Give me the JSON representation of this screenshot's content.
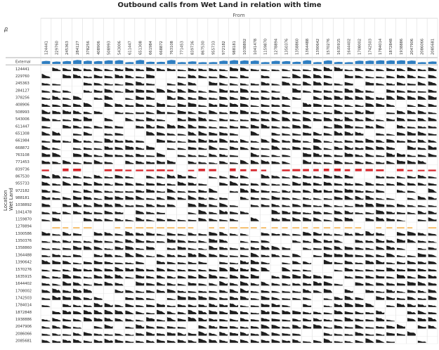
{
  "chart_data": {
    "type": "heatmap",
    "title": "Outbound calls from Wet Land in relation with time",
    "x_axis_title": "From",
    "y_axis_title": "To",
    "row_group_label": "Location",
    "row_group_value": "Wet Land",
    "columns": [
      "124441",
      "229760",
      "245363",
      "284127",
      "378256",
      "408906",
      "508993",
      "543006",
      "611447",
      "651308",
      "661984",
      "668872",
      "763108",
      "771453",
      "839736",
      "867530",
      "955733",
      "972182",
      "988181",
      "1038892",
      "1041478",
      "1159870",
      "1278894",
      "1350376",
      "1358860",
      "1364488",
      "1390642",
      "1570276",
      "1635915",
      "1644402",
      "1708002",
      "1742503",
      "1784014",
      "1872848",
      "1938886",
      "2047906",
      "2086066",
      "2085681"
    ],
    "rows": [
      "External",
      "124441",
      "229760",
      "245363",
      "284127",
      "378256",
      "408906",
      "508993",
      "543006",
      "611447",
      "651308",
      "661984",
      "668872",
      "763108",
      "771453",
      "839736",
      "867530",
      "955733",
      "972182",
      "988181",
      "1038892",
      "1041478",
      "1159870",
      "1278894",
      "1300586",
      "1350376",
      "1358860",
      "1364488",
      "1390642",
      "1570276",
      "1635915",
      "1644402",
      "1708002",
      "1742503",
      "1784014",
      "1872848",
      "1938886",
      "2047906",
      "2086066",
      "2085681"
    ],
    "highlighted_rows": {
      "External": "#2f7ec1",
      "839736": "#d6252b",
      "1278894": "#f2b04e"
    },
    "default_mark_color": "#1e1e1e",
    "grid": true
  }
}
